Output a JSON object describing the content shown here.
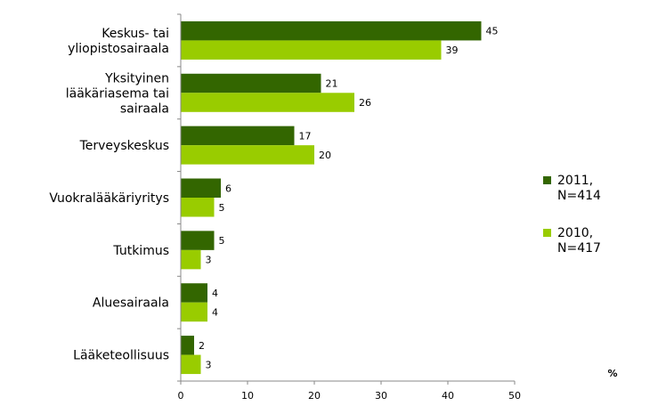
{
  "chart_data": {
    "type": "bar",
    "orientation": "horizontal",
    "categories": [
      [
        "Keskus- tai",
        "yliopistosairaala"
      ],
      [
        "Yksityinen",
        "lääkäriasema tai",
        "sairaala"
      ],
      [
        "Terveyskeskus"
      ],
      [
        "Vuokralääkäriyritys"
      ],
      [
        "Tutkimus"
      ],
      [
        "Aluesairaala"
      ],
      [
        "Lääketeollisuus"
      ]
    ],
    "series": [
      {
        "name": [
          "2011,",
          "N=414"
        ],
        "color": "#336600",
        "values": [
          45,
          21,
          17,
          6,
          5,
          4,
          2
        ]
      },
      {
        "name": [
          "2010,",
          "N=417"
        ],
        "color": "#99cc00",
        "values": [
          39,
          26,
          20,
          5,
          3,
          4,
          3
        ]
      }
    ],
    "xlim": [
      0,
      50
    ],
    "xticks": [
      0,
      10,
      20,
      30,
      40,
      50
    ],
    "xunit": "%",
    "grid": false,
    "legend_position": "right"
  }
}
